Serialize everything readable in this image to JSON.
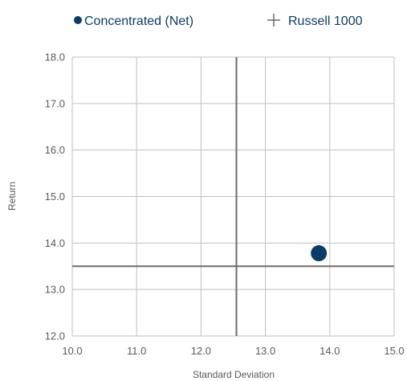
{
  "chart_data": {
    "type": "scatter",
    "xlabel": "Standard Deviation",
    "ylabel": "Return",
    "xlim": [
      10.0,
      15.0
    ],
    "ylim": [
      12.0,
      18.0
    ],
    "x_ticks": [
      "10.0",
      "11.0",
      "12.0",
      "13.0",
      "14.0",
      "15.0"
    ],
    "y_ticks": [
      "12.0",
      "13.0",
      "14.0",
      "15.0",
      "16.0",
      "17.0",
      "18.0"
    ],
    "grid": true,
    "legend_position": "top",
    "series": [
      {
        "name": "Concentrated (Net)",
        "marker": "circle",
        "color": "#0b3c68",
        "points": [
          {
            "x": 13.83,
            "y": 13.78
          }
        ]
      },
      {
        "name": "Russell 1000",
        "marker": "crosshair",
        "color": "#6b6b6b",
        "points": [
          {
            "x": 12.55,
            "y": 13.5
          }
        ]
      }
    ],
    "colors": {
      "text": "#58595b",
      "grid": "#bfbfbf",
      "legend_text": "#0b3c68"
    }
  }
}
